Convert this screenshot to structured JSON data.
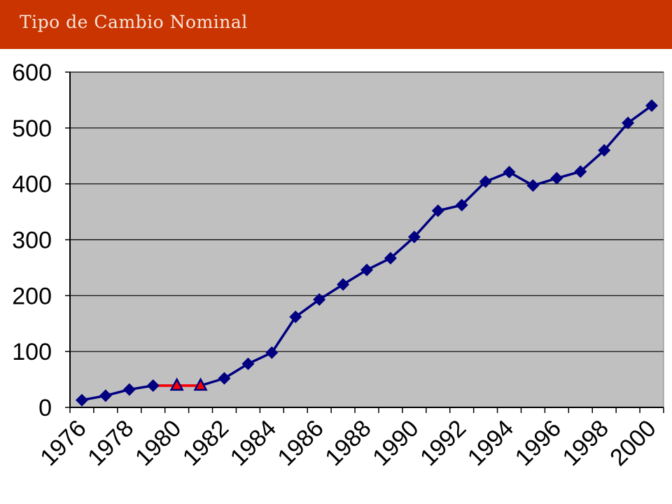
{
  "header": {
    "title": "Tipo de Cambio Nominal"
  },
  "colors": {
    "header_bg": "#c93400",
    "plot_bg": "#c0c0c0",
    "series_main": "#000080",
    "series_highlight": "#ff0000"
  },
  "chart_data": {
    "type": "line",
    "title": "",
    "xlabel": "",
    "ylabel": "",
    "ylim": [
      0,
      600
    ],
    "yticks": [
      "0",
      "100",
      "200",
      "300",
      "400",
      "500",
      "600"
    ],
    "xticks": [
      "1976",
      "1978",
      "1980",
      "1982",
      "1984",
      "1986",
      "1988",
      "1990",
      "1992",
      "1994",
      "1996",
      "1998",
      "2000"
    ],
    "grid": true,
    "legend": "none",
    "series": [
      {
        "marker": "diamond",
        "x": [
          1976,
          1977,
          1978,
          1979,
          1980,
          1981,
          1982,
          1983,
          1984,
          1985,
          1986,
          1987,
          1988,
          1989,
          1990,
          1991,
          1992,
          1993,
          1994,
          1995,
          1996,
          1997,
          1998,
          1999,
          2000
        ],
        "values": [
          13,
          21,
          32,
          39,
          39,
          39,
          52,
          78,
          98,
          162,
          193,
          220,
          246,
          267,
          305,
          352,
          362,
          404,
          421,
          397,
          410,
          422,
          460,
          509,
          540
        ]
      },
      {
        "marker": "triangle",
        "x": [
          1979,
          1980,
          1981
        ],
        "values": [
          39,
          39,
          39
        ]
      }
    ]
  }
}
